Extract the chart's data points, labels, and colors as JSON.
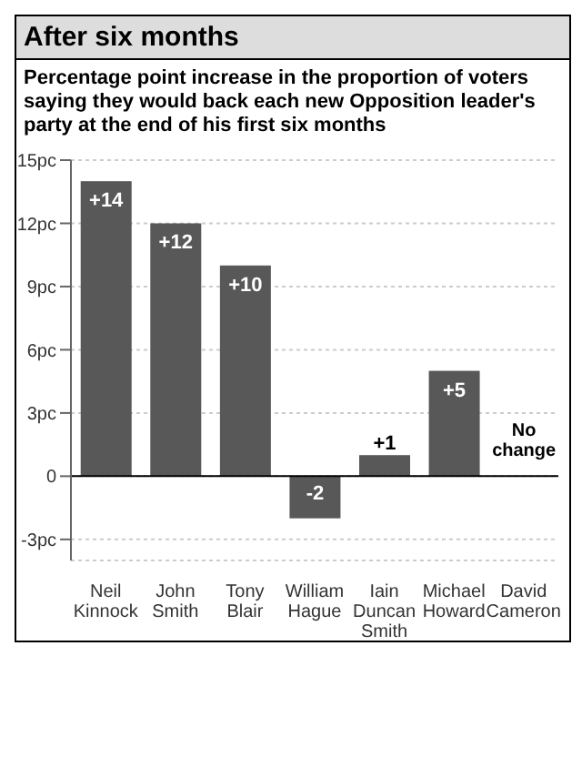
{
  "chart_data": {
    "type": "bar",
    "title": "After six months",
    "subtitle": "Percentage point increase in the proportion of voters saying they would back each new Opposition leader's party at the end of his first six months",
    "categories": [
      "Neil Kinnock",
      "John Smith",
      "Tony Blair",
      "William Hague",
      "Iain Duncan Smith",
      "Michael Howard",
      "David Cameron"
    ],
    "values": [
      14,
      12,
      10,
      -2,
      1,
      5,
      0
    ],
    "value_labels": [
      "+14",
      "+12",
      "+10",
      "-2",
      "+1",
      "+5",
      "No change"
    ],
    "color": "#585858",
    "ylim": [
      -4,
      15
    ],
    "yticks": [
      {
        "value": -3,
        "label": "-3pc"
      },
      {
        "value": 0,
        "label": "0"
      },
      {
        "value": 3,
        "label": "3pc"
      },
      {
        "value": 6,
        "label": "6pc"
      },
      {
        "value": 9,
        "label": "9pc"
      },
      {
        "value": 12,
        "label": "12pc"
      },
      {
        "value": 15,
        "label": "15pc"
      }
    ],
    "grid": "y"
  }
}
